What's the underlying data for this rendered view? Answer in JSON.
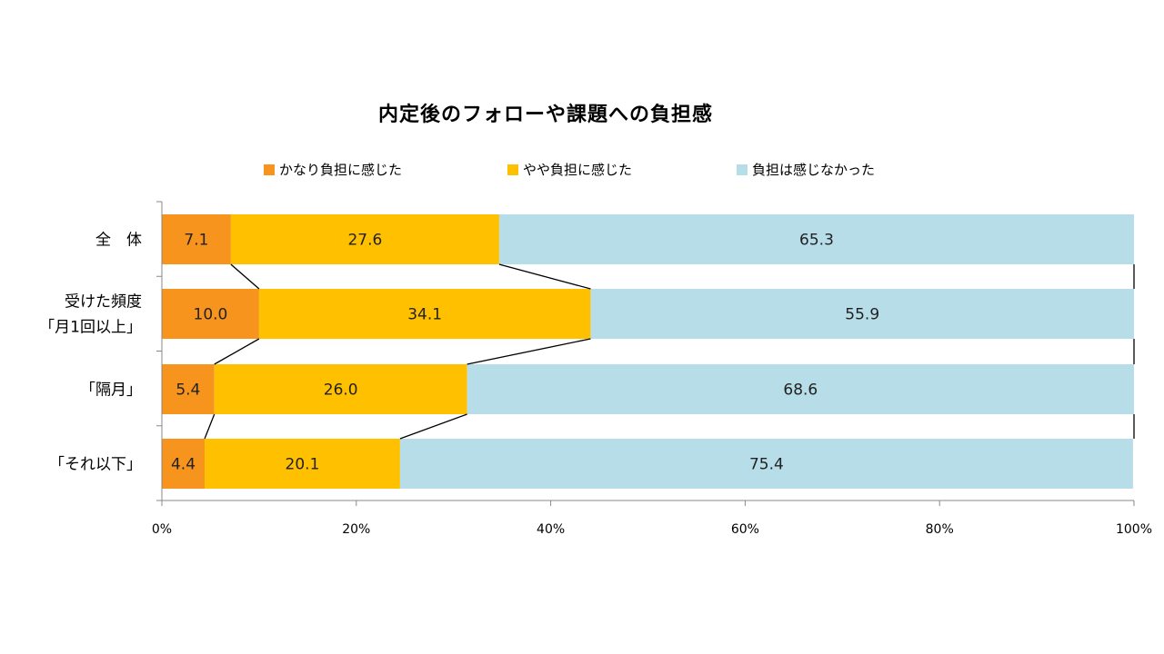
{
  "chart_data": {
    "type": "bar",
    "stacked": "percent",
    "orientation": "horizontal",
    "title": "内定後のフォローや課題への負担感",
    "categories": [
      [
        "全　体"
      ],
      [
        "受けた頻度",
        "「月1回以上」"
      ],
      [
        "「隔月」"
      ],
      [
        "「それ以下」"
      ]
    ],
    "series": [
      {
        "name": "かなり負担に感じた",
        "color": "#F7941D",
        "values": [
          7.1,
          10.0,
          5.4,
          4.4
        ],
        "labels": [
          "7.1",
          "10.0",
          "5.4",
          "4.4"
        ]
      },
      {
        "name": "やや負担に感じた",
        "color": "#FFC000",
        "values": [
          27.6,
          34.1,
          26.0,
          20.1
        ],
        "labels": [
          "27.6",
          "34.1",
          "26.0",
          "20.1"
        ]
      },
      {
        "name": "負担は感じなかった",
        "color": "#B7DDE8",
        "values": [
          65.3,
          55.9,
          68.6,
          75.4
        ],
        "labels": [
          "65.3",
          "55.9",
          "68.6",
          "75.4"
        ]
      }
    ],
    "xlim": [
      0,
      100
    ],
    "xticks": [
      "0%",
      "20%",
      "40%",
      "60%",
      "80%",
      "100%"
    ],
    "xlabel": "",
    "ylabel": "",
    "legend": "top",
    "series_lines": true,
    "grid": false
  }
}
